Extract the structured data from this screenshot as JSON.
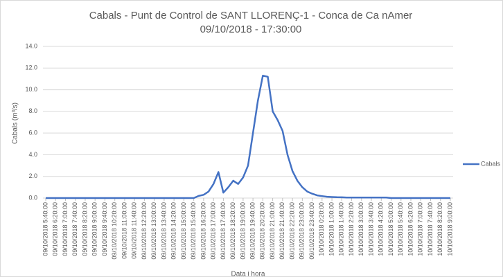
{
  "chart_data": {
    "type": "line",
    "title": "Cabals - Punt de Control de SANT LLORENÇ-1 - Conca de Ca nAmer",
    "subtitle": "09/10/2018 - 17:30:00",
    "y_label": "Cabals (m³/s)",
    "x_label": "Data i hora",
    "categories": [
      "09/10/2018 5:40:00",
      null,
      "09/10/2018 6:20:00",
      null,
      "09/10/2018 7:00:00",
      null,
      "09/10/2018 7:40:00",
      null,
      "09/10/2018 8:20:00",
      null,
      "09/10/2018 9:00:00",
      null,
      "09/10/2018 9:40:00",
      null,
      "09/10/2018 10:20:00",
      null,
      "09/10/2018 11:00:00",
      null,
      "09/10/2018 11:40:00",
      null,
      "09/10/2018 12:20:00",
      null,
      "09/10/2018 13:00:00",
      null,
      "09/10/2018 13:40:00",
      null,
      "09/10/2018 14:20:00",
      null,
      "09/10/2018 15:00:00",
      null,
      "09/10/2018 15:40:00",
      null,
      "09/10/2018 16:20:00",
      null,
      "09/10/2018 17:00:00",
      null,
      "09/10/2018 17:40:00",
      null,
      "09/10/2018 18:20:00",
      null,
      "09/10/2018 19:00:00",
      null,
      "09/10/2018 19:40:00",
      null,
      "09/10/2018 20:20:00",
      null,
      "09/10/2018 21:00:00",
      null,
      "09/10/2018 21:40:00",
      null,
      "09/10/2018 22:20:00",
      null,
      "09/10/2018 23:00:00",
      null,
      "09/10/2018 23:40:00",
      null,
      "10/10/2018 0:20:00",
      null,
      "10/10/2018 1:00:00",
      null,
      "10/10/2018 1:40:00",
      null,
      "10/10/2018 2:20:00",
      null,
      "10/10/2018 3:00:00",
      null,
      "10/10/2018 3:40:00",
      null,
      "10/10/2018 4:20:00",
      null,
      "10/10/2018 5:00:00",
      null,
      "10/10/2018 5:40:00",
      null,
      "10/10/2018 6:20:00",
      null,
      "10/10/2018 7:00:00",
      null,
      "10/10/2018 7:40:00",
      null,
      "10/10/2018 8:20:00",
      null,
      "10/10/2018 9:00:00"
    ],
    "series": [
      {
        "name": "Cabals",
        "color": "#4472c4",
        "values": [
          0,
          0,
          0,
          0,
          0,
          0,
          0,
          0,
          0,
          0,
          0,
          0,
          0,
          0,
          0,
          0,
          0,
          0,
          0,
          0,
          0,
          0,
          0,
          0,
          0,
          0,
          0,
          0,
          0,
          0,
          0,
          0.2,
          0.3,
          0.6,
          1.3,
          2.4,
          0.5,
          1.0,
          1.6,
          1.3,
          1.9,
          3.0,
          6.0,
          9.0,
          11.3,
          11.2,
          8.0,
          7.2,
          6.2,
          4.0,
          2.5,
          1.6,
          1.0,
          0.6,
          0.4,
          0.25,
          0.18,
          0.12,
          0.1,
          0.08,
          0.07,
          0.05,
          0.05,
          0.05,
          0.05,
          0.05,
          0.05,
          0.05,
          0.05,
          0.05,
          0,
          0,
          0,
          0,
          0,
          0,
          0,
          0,
          0,
          0,
          0,
          0,
          0
        ]
      }
    ],
    "ylim": [
      0,
      14
    ],
    "yticks": [
      {
        "value": 0,
        "label": "0.0"
      },
      {
        "value": 2,
        "label": "2.0"
      },
      {
        "value": 4,
        "label": "4.0"
      },
      {
        "value": 6,
        "label": "6.0"
      },
      {
        "value": 8,
        "label": "8.0"
      },
      {
        "value": 10,
        "label": "10.0"
      },
      {
        "value": 12,
        "label": "12.0"
      },
      {
        "value": 14,
        "label": "14.0"
      }
    ],
    "grid": true,
    "legend": "right"
  }
}
